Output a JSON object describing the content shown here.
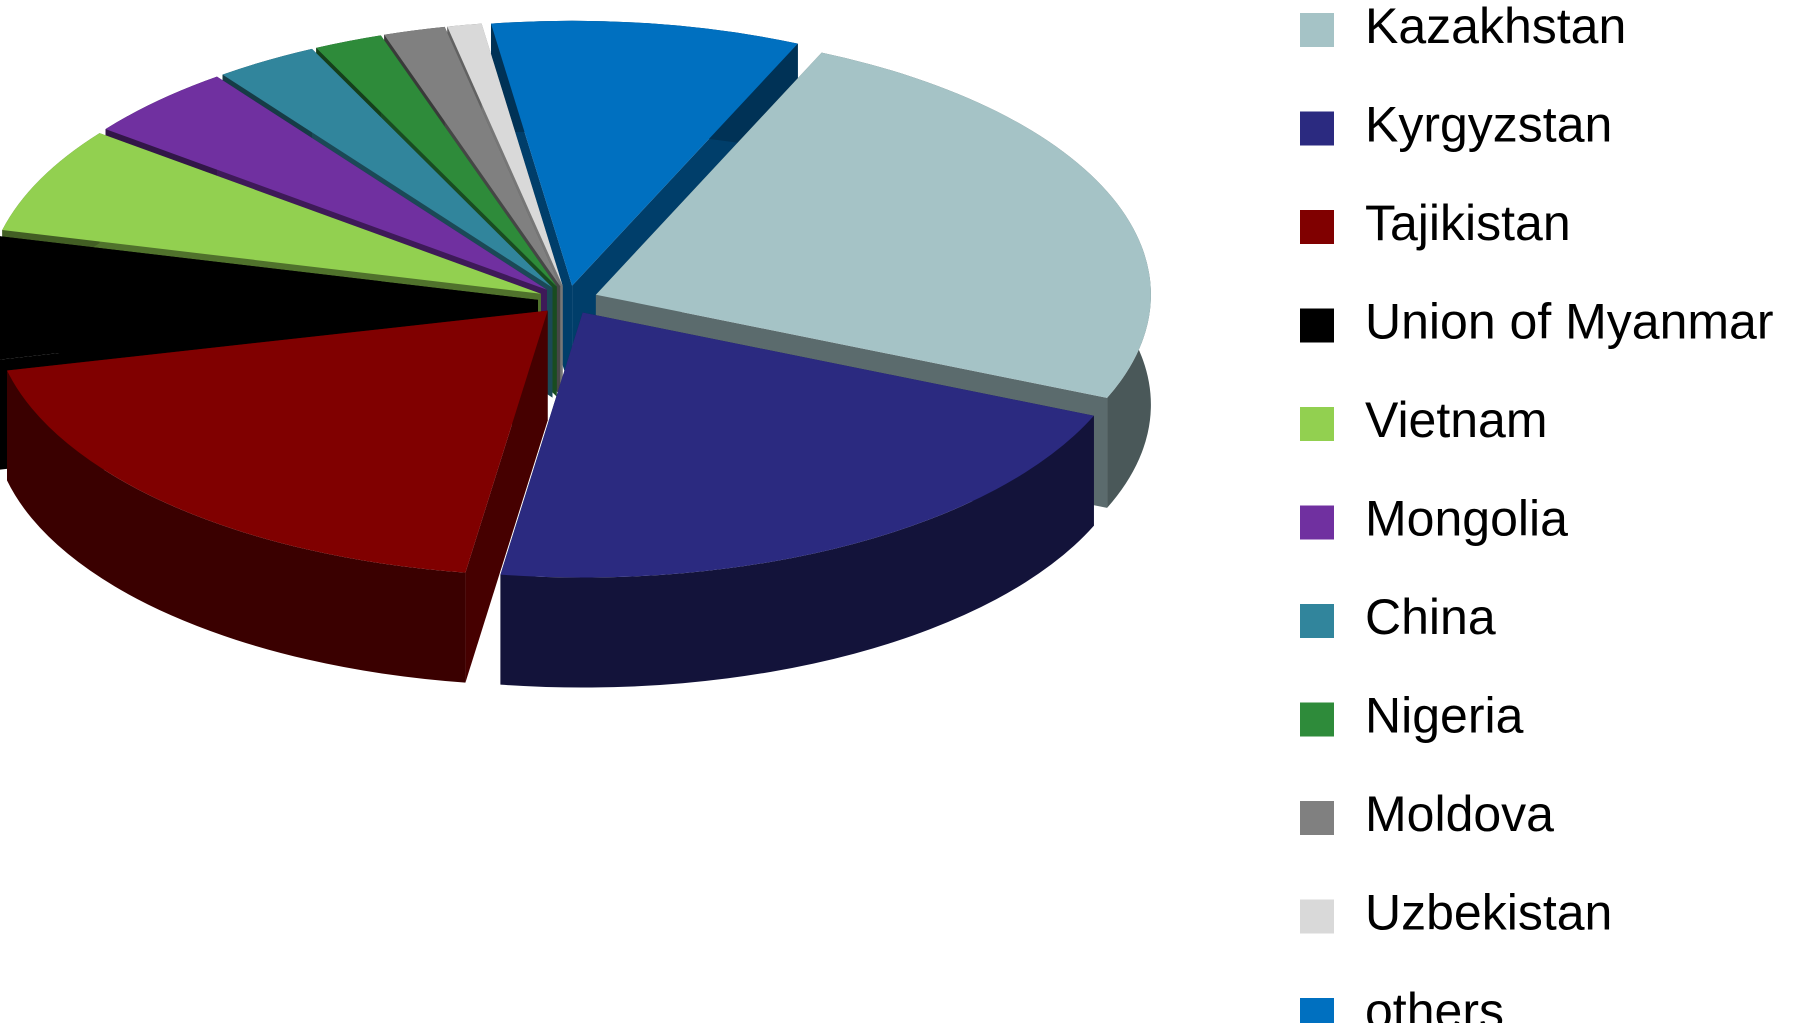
{
  "chart_data": {
    "type": "pie",
    "categories": [
      "Kazakhstan",
      "Kyrgyzstan",
      "Tajikistan",
      "Union of Myanmar",
      "Vietnam",
      "Mongolia",
      "China",
      "Nigeria",
      "Moldova",
      "Uzbekistan",
      "others"
    ],
    "values": [
      24.7,
      21,
      19,
      7.5,
      6.5,
      4.5,
      3,
      2,
      1.8,
      1,
      9
    ],
    "colors": [
      "#a5c3c6",
      "#2b2a80",
      "#800000",
      "#000000",
      "#92d050",
      "#7030a0",
      "#31859c",
      "#2e8b3a",
      "#808080",
      "#d9d9d9",
      "#0070c0"
    ],
    "legend": "right"
  }
}
